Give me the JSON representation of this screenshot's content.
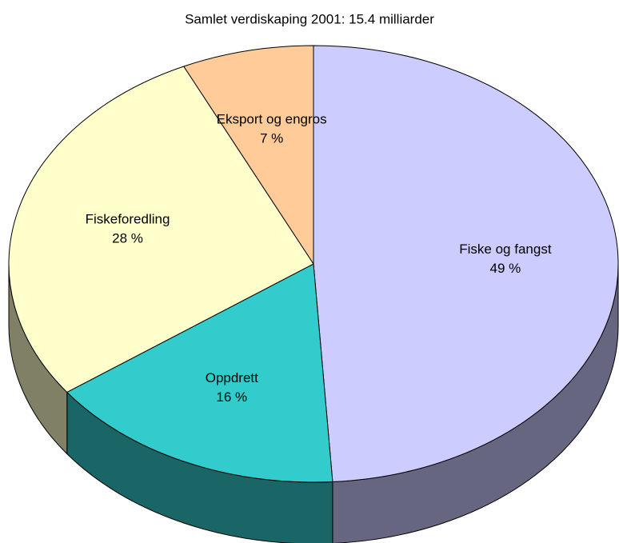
{
  "chart_data": {
    "type": "pie",
    "title": "Samlet verdiskaping 2001: 15.4 milliarder",
    "categories": [
      "Fiske og fangst",
      "Oppdrett",
      "Fiskeforedling",
      "Eksport og engros"
    ],
    "values": [
      49,
      16,
      28,
      7
    ],
    "value_labels": [
      "49 %",
      "16 %",
      "28 %",
      "7 %"
    ],
    "colors": [
      "#ccccff",
      "#33cccc",
      "#ffffcc",
      "#ffcc99"
    ]
  }
}
